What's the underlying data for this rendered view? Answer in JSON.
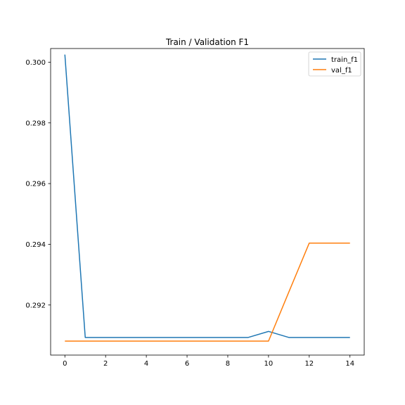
{
  "chart_data": {
    "type": "line",
    "title": "Train / Validation F1",
    "xlabel": "",
    "ylabel": "",
    "xlim": [
      -0.7,
      14.7
    ],
    "ylim": [
      0.29035,
      0.30045
    ],
    "xticks": [
      0,
      2,
      4,
      6,
      8,
      10,
      12,
      14
    ],
    "yticks": [
      0.292,
      0.294,
      0.296,
      0.298,
      0.3
    ],
    "grid": false,
    "legend_position": "top-right",
    "x": [
      0,
      1,
      2,
      3,
      4,
      5,
      6,
      7,
      8,
      9,
      10,
      11,
      12,
      13,
      14
    ],
    "series": [
      {
        "name": "train_f1",
        "color": "#1f77b4",
        "values": [
          0.30025,
          0.29093,
          0.29093,
          0.29093,
          0.29093,
          0.29093,
          0.29093,
          0.29093,
          0.29093,
          0.29093,
          0.29113,
          0.29093,
          0.29093,
          0.29093,
          0.29093
        ]
      },
      {
        "name": "val_f1",
        "color": "#ff7f0e",
        "values": [
          0.29081,
          0.29081,
          0.29081,
          0.29081,
          0.29081,
          0.29081,
          0.29081,
          0.29081,
          0.29081,
          0.29081,
          0.29081,
          0.29243,
          0.29404,
          0.29404,
          0.29404
        ]
      }
    ]
  }
}
